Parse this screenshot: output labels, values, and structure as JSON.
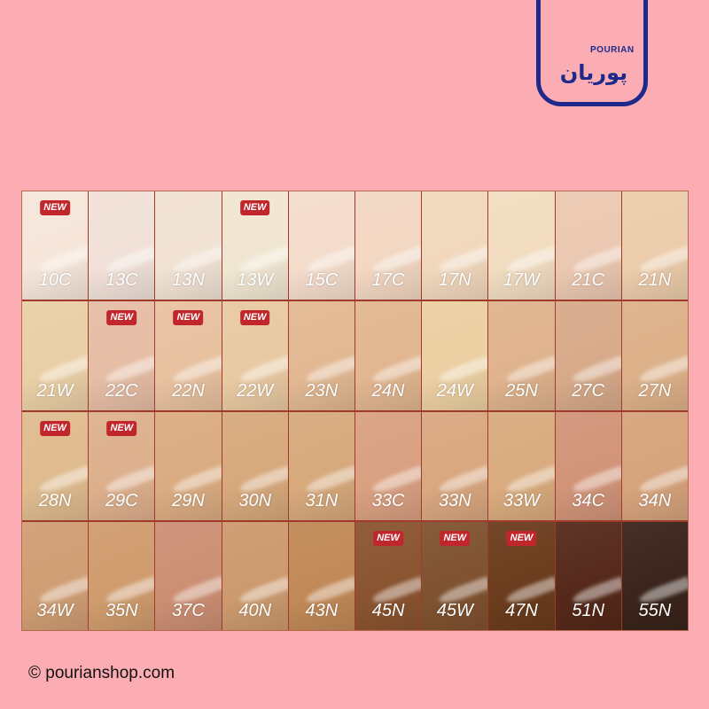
{
  "logo": {
    "text_en": "POURIAN",
    "text_fa": "پوریان",
    "colors": {
      "primary": "#1d2a8c",
      "accent": "#c0262b"
    }
  },
  "badge_label": "NEW",
  "swatches": [
    {
      "name": "10C",
      "color": "#f6e6da",
      "new": true
    },
    {
      "name": "13C",
      "color": "#f1e1d8",
      "new": false
    },
    {
      "name": "13N",
      "color": "#f1e2d3",
      "new": false
    },
    {
      "name": "13W",
      "color": "#f1e6d2",
      "new": true
    },
    {
      "name": "15C",
      "color": "#f4dccb",
      "new": false
    },
    {
      "name": "17C",
      "color": "#f2d7c2",
      "new": false
    },
    {
      "name": "17N",
      "color": "#f1d8bd",
      "new": false
    },
    {
      "name": "17W",
      "color": "#f1dcc0",
      "new": false
    },
    {
      "name": "21C",
      "color": "#ebc8b1",
      "new": false
    },
    {
      "name": "21N",
      "color": "#ecccab",
      "new": false
    },
    {
      "name": "21W",
      "color": "#e9cfa6",
      "new": false
    },
    {
      "name": "22C",
      "color": "#e6bda5",
      "new": true
    },
    {
      "name": "22N",
      "color": "#e8c1a0",
      "new": true
    },
    {
      "name": "22W",
      "color": "#e8c9a2",
      "new": true
    },
    {
      "name": "23N",
      "color": "#e2b892",
      "new": false
    },
    {
      "name": "24N",
      "color": "#e1b690",
      "new": false
    },
    {
      "name": "24W",
      "color": "#eccfa2",
      "new": false
    },
    {
      "name": "25N",
      "color": "#dfb38d",
      "new": false
    },
    {
      "name": "27C",
      "color": "#d7aa8a",
      "new": false
    },
    {
      "name": "27N",
      "color": "#ddb189",
      "new": false
    },
    {
      "name": "28N",
      "color": "#dfbb8e",
      "new": true
    },
    {
      "name": "29C",
      "color": "#ddb08d",
      "new": true
    },
    {
      "name": "29N",
      "color": "#dbac82",
      "new": false
    },
    {
      "name": "30N",
      "color": "#d6a97c",
      "new": false
    },
    {
      "name": "31N",
      "color": "#d7a97c",
      "new": false
    },
    {
      "name": "33C",
      "color": "#d9a081",
      "new": false
    },
    {
      "name": "33N",
      "color": "#d9a780",
      "new": false
    },
    {
      "name": "33W",
      "color": "#d9ab7e",
      "new": false
    },
    {
      "name": "34C",
      "color": "#d19479",
      "new": false
    },
    {
      "name": "34N",
      "color": "#d6a37c",
      "new": false
    },
    {
      "name": "34W",
      "color": "#d09e74",
      "new": false
    },
    {
      "name": "35N",
      "color": "#d09c6e",
      "new": false
    },
    {
      "name": "37C",
      "color": "#cc8f74",
      "new": false
    },
    {
      "name": "40N",
      "color": "#cc9a6e",
      "new": false
    },
    {
      "name": "43N",
      "color": "#c18957",
      "new": false
    },
    {
      "name": "45N",
      "color": "#8a5430",
      "new": true
    },
    {
      "name": "45W",
      "color": "#7f5230",
      "new": true
    },
    {
      "name": "47N",
      "color": "#6b3c1d",
      "new": true
    },
    {
      "name": "51N",
      "color": "#55291a",
      "new": false
    },
    {
      "name": "55N",
      "color": "#3a241b",
      "new": false
    }
  ],
  "footer": {
    "text": "© pourianshop.com"
  },
  "background_color": "#fcadb3"
}
